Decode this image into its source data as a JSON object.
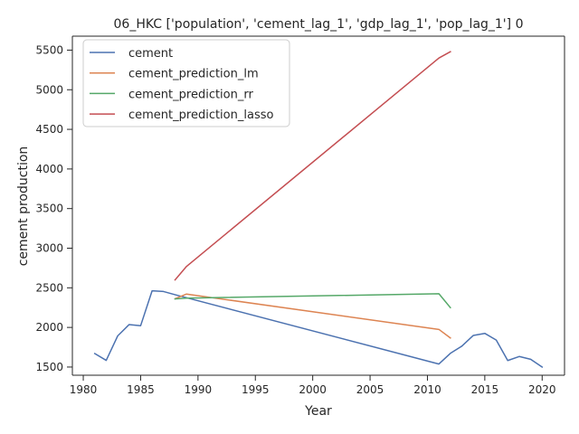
{
  "chart_data": {
    "type": "line",
    "title": "06_HKC ['population', 'cement_lag_1', 'gdp_lag_1', 'pop_lag_1'] 0",
    "xlabel": "Year",
    "ylabel": "cement production",
    "xlim": [
      1979.05,
      2021.95
    ],
    "ylim": [
      1396.6,
      5676.2
    ],
    "xticks": [
      1980,
      1985,
      1990,
      1995,
      2000,
      2005,
      2010,
      2015,
      2020
    ],
    "yticks": [
      1500,
      2000,
      2500,
      3000,
      3500,
      4000,
      4500,
      5000,
      5500
    ],
    "grid": false,
    "legend_position": "top-left",
    "series": [
      {
        "name": "cement",
        "color": "#4c72b0",
        "x": [
          1981,
          1982,
          1983,
          1984,
          1985,
          1986,
          1987,
          1988,
          2011,
          2012,
          2013,
          2014,
          2015,
          2016,
          2017,
          2018,
          2019,
          2020
        ],
        "y": [
          1670,
          1584,
          1893,
          2036,
          2022,
          2462,
          2453,
          2413,
          1538,
          1673,
          1764,
          1899,
          1925,
          1840,
          1582,
          1633,
          1598,
          1500
        ]
      },
      {
        "name": "cement_prediction_lm",
        "color": "#dd8452",
        "x": [
          1988,
          1989,
          2011,
          2012
        ],
        "y": [
          2362,
          2421,
          1975,
          1867
        ]
      },
      {
        "name": "cement_prediction_rr",
        "color": "#55a868",
        "x": [
          1988,
          1989,
          2011,
          2012
        ],
        "y": [
          2360,
          2370,
          2425,
          2250
        ]
      },
      {
        "name": "cement_prediction_lasso",
        "color": "#c44e52",
        "x": [
          1988,
          1989,
          2011,
          2012
        ],
        "y": [
          2600,
          2770,
          5400,
          5480
        ]
      }
    ]
  }
}
